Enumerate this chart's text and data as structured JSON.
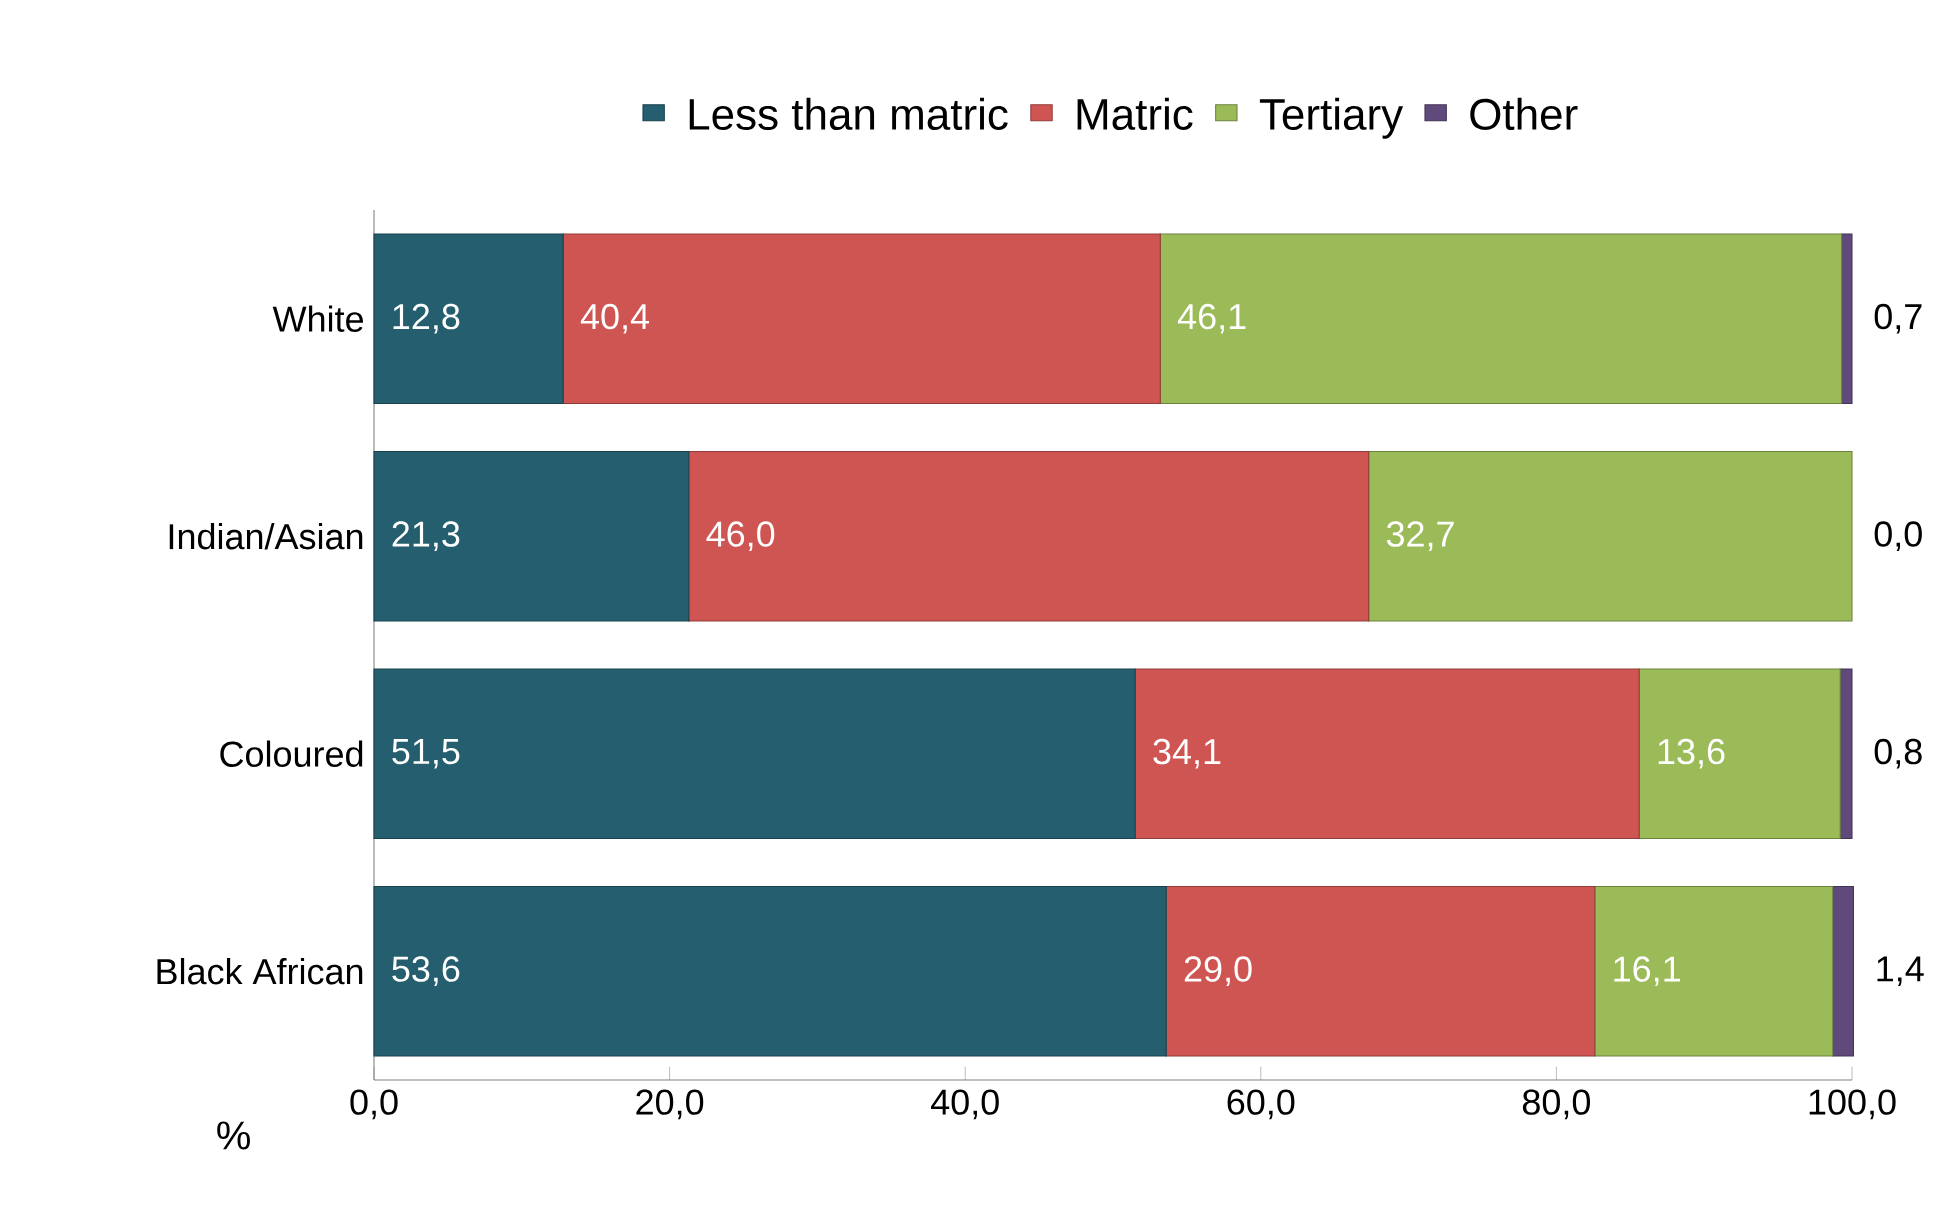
{
  "chart_data": {
    "type": "bar",
    "orientation": "horizontal",
    "stacked": true,
    "legend": "top",
    "xlabel": "%",
    "categories": [
      "White",
      "Indian/Asian",
      "Coloured",
      "Black African"
    ],
    "series": [
      {
        "name": "Less than matric",
        "color": "#255e6e",
        "values": [
          12.8,
          21.3,
          51.5,
          53.6
        ],
        "value_labels": [
          "12,8",
          "21,3",
          "51,5",
          "53,6"
        ]
      },
      {
        "name": "Matric",
        "color": "#cf5552",
        "values": [
          40.4,
          46.0,
          34.1,
          29.0
        ],
        "value_labels": [
          "40,4",
          "46,0",
          "34,1",
          "29,0"
        ]
      },
      {
        "name": "Tertiary",
        "color": "#9bbb59",
        "values": [
          46.1,
          32.7,
          13.6,
          16.1
        ],
        "value_labels": [
          "46,1",
          "32,7",
          "13,6",
          "16,1"
        ]
      },
      {
        "name": "Other",
        "color": "#604a7b",
        "values": [
          0.7,
          0.0,
          0.8,
          1.4
        ],
        "value_labels": [
          "0,7",
          "0,0",
          "0,8",
          "1,4"
        ]
      }
    ],
    "xlim": [
      0,
      100
    ],
    "xticks": [
      {
        "value": 0,
        "label": "0,0"
      },
      {
        "value": 20,
        "label": "20,0"
      },
      {
        "value": 40,
        "label": "40,0"
      },
      {
        "value": 60,
        "label": "60,0"
      },
      {
        "value": 80,
        "label": "80,0"
      },
      {
        "value": 100,
        "label": "100,0"
      }
    ]
  }
}
